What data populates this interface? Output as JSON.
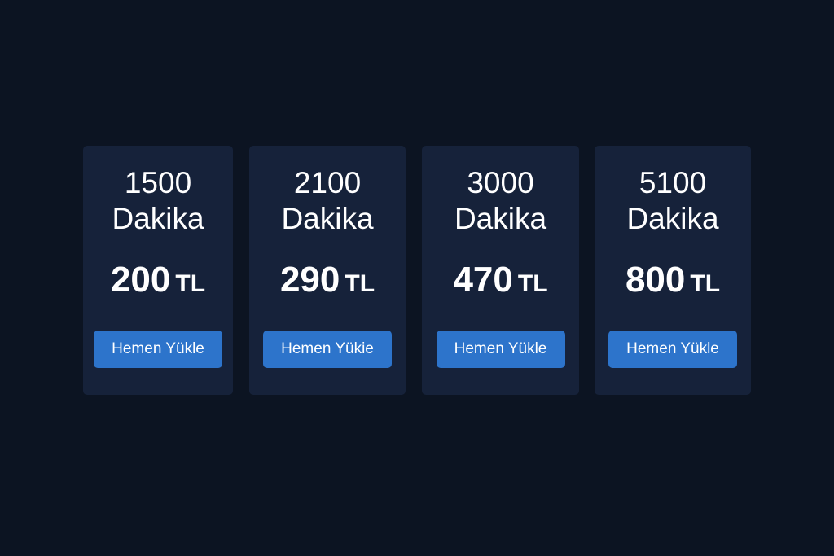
{
  "background_color": "#0c1422",
  "card_color": "#16223a",
  "accent_color": "#2d74cb",
  "packages": [
    {
      "minutes": "1500",
      "unit": "Dakika",
      "price": "200",
      "currency": "TL",
      "button_label": "Hemen Yükle"
    },
    {
      "minutes": "2100",
      "unit": "Dakika",
      "price": "290",
      "currency": "TL",
      "button_label": "Hemen Yükie"
    },
    {
      "minutes": "3000",
      "unit": "Dakika",
      "price": "470",
      "currency": "TL",
      "button_label": "Hemen Yükle"
    },
    {
      "minutes": "5100",
      "unit": "Dakika",
      "price": "800",
      "currency": "TL",
      "button_label": "Hemen Yükle"
    }
  ]
}
